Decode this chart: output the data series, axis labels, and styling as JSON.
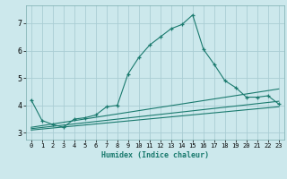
{
  "xlabel": "Humidex (Indice chaleur)",
  "bg_color": "#cce8ec",
  "grid_color": "#aacdd4",
  "line_color": "#1a7a6e",
  "xlim": [
    -0.5,
    23.5
  ],
  "ylim": [
    2.75,
    7.65
  ],
  "xticks": [
    0,
    1,
    2,
    3,
    4,
    5,
    6,
    7,
    8,
    9,
    10,
    11,
    12,
    13,
    14,
    15,
    16,
    17,
    18,
    19,
    20,
    21,
    22,
    23
  ],
  "yticks": [
    3,
    4,
    5,
    6,
    7
  ],
  "line1_x": [
    0,
    1,
    2,
    3,
    4,
    5,
    6,
    7,
    8,
    9,
    10,
    11,
    12,
    13,
    14,
    15,
    16,
    17,
    18,
    19,
    20,
    21,
    22,
    23
  ],
  "line1_y": [
    4.2,
    3.45,
    3.3,
    3.2,
    3.5,
    3.55,
    3.65,
    3.95,
    4.0,
    5.15,
    5.75,
    6.2,
    6.5,
    6.8,
    6.95,
    7.3,
    6.05,
    5.5,
    4.9,
    4.65,
    4.3,
    4.3,
    4.35,
    4.05
  ],
  "line2_x": [
    0,
    23
  ],
  "line2_y": [
    3.2,
    4.6
  ],
  "line3_x": [
    0,
    23
  ],
  "line3_y": [
    3.15,
    4.15
  ],
  "line4_x": [
    0,
    23
  ],
  "line4_y": [
    3.1,
    3.95
  ]
}
